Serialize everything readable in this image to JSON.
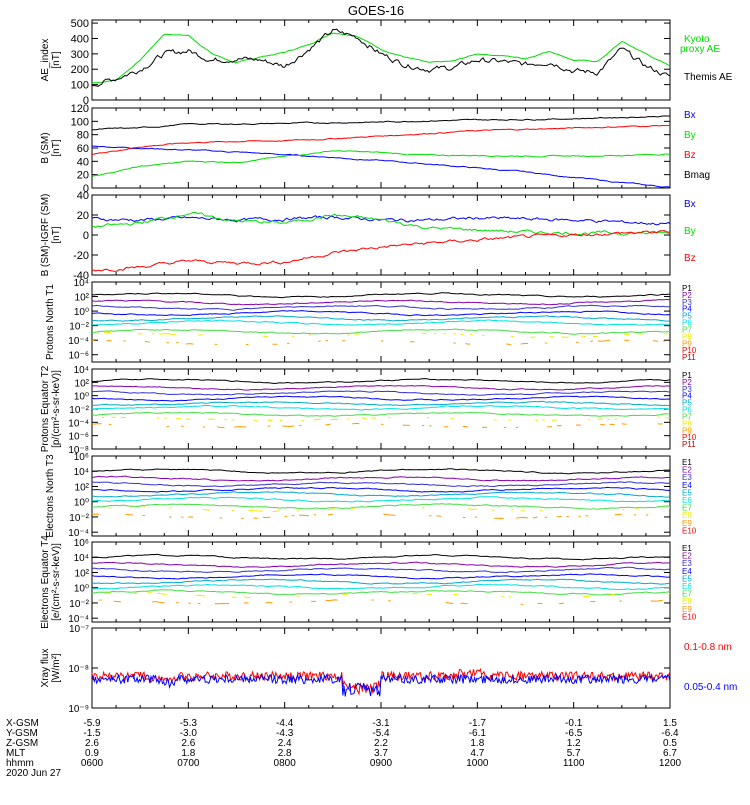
{
  "title": "GOES-16",
  "colors": {
    "black": "#000000",
    "blue": "#0000ff",
    "green": "#00dd00",
    "red": "#ff0000",
    "purple": "#8800aa",
    "indigo": "#3333cc",
    "teal": "#00aacc",
    "cyan": "#00e0e0",
    "lime": "#44dd44",
    "yellow": "#eeee00",
    "orange": "#ff9900",
    "darkred": "#bb0000"
  },
  "chart_data": [
    {
      "type": "line",
      "panel": "ae",
      "ylabel": "AE_index [nT]",
      "yticks": [
        "500",
        "400",
        "300",
        "200",
        "100",
        "0"
      ],
      "ylim": [
        0,
        520
      ],
      "legend": [
        "Kyoto proxy AE",
        "Themis AE"
      ],
      "x_hours": [
        6.0,
        6.25,
        6.5,
        6.75,
        7.0,
        7.25,
        7.5,
        7.75,
        8.0,
        8.25,
        8.5,
        8.75,
        9.0,
        9.25,
        9.5,
        9.75,
        10.0,
        10.25,
        10.5,
        10.75,
        11.0,
        11.25,
        11.5,
        11.75,
        12.0
      ],
      "series": [
        {
          "name": "Kyoto proxy AE",
          "color": "green",
          "values": [
            110,
            130,
            260,
            430,
            420,
            300,
            240,
            280,
            310,
            360,
            440,
            420,
            330,
            280,
            240,
            250,
            300,
            290,
            270,
            320,
            260,
            250,
            380,
            300,
            220
          ]
        },
        {
          "name": "Themis AE",
          "color": "black",
          "values": [
            100,
            140,
            200,
            300,
            320,
            260,
            270,
            260,
            220,
            330,
            450,
            410,
            300,
            230,
            200,
            210,
            260,
            250,
            230,
            250,
            190,
            180,
            330,
            220,
            150
          ]
        }
      ]
    },
    {
      "type": "line",
      "panel": "bsm",
      "ylabel": "B (SM) [nT]",
      "yticks": [
        "120",
        "100",
        "80",
        "60",
        "40",
        "20",
        "0"
      ],
      "ylim": [
        0,
        120
      ],
      "legend": [
        "Bx",
        "By",
        "Bz",
        "Bmag"
      ],
      "x_hours": [
        6.0,
        6.5,
        7.0,
        7.5,
        8.0,
        8.5,
        9.0,
        9.5,
        10.0,
        10.5,
        11.0,
        11.5,
        12.0
      ],
      "series": [
        {
          "name": "Bx",
          "color": "blue",
          "values": [
            63,
            60,
            57,
            54,
            50,
            46,
            41,
            36,
            30,
            24,
            16,
            8,
            1
          ]
        },
        {
          "name": "By",
          "color": "green",
          "values": [
            18,
            32,
            40,
            39,
            47,
            56,
            53,
            49,
            49,
            48,
            48,
            49,
            51
          ]
        },
        {
          "name": "Bz",
          "color": "red",
          "values": [
            50,
            62,
            68,
            70,
            71,
            74,
            78,
            82,
            86,
            88,
            90,
            92,
            94
          ]
        },
        {
          "name": "Bmag",
          "color": "black",
          "values": [
            88,
            90,
            96,
            96,
            97,
            98,
            99,
            101,
            102,
            103,
            104,
            106,
            108
          ]
        }
      ]
    },
    {
      "type": "line",
      "panel": "bigrf",
      "ylabel": "B (SM)-IGRF (SM) [nT]",
      "yticks": [
        "40",
        "20",
        "0",
        "-20",
        "-40"
      ],
      "ylim": [
        -40,
        40
      ],
      "legend": [
        "Bx",
        "By",
        "Bz"
      ],
      "x_hours": [
        6.0,
        6.5,
        7.0,
        7.5,
        8.0,
        8.5,
        9.0,
        9.5,
        10.0,
        10.5,
        11.0,
        11.5,
        12.0
      ],
      "series": [
        {
          "name": "Bx",
          "color": "blue",
          "values": [
            16,
            15,
            17,
            15,
            16,
            18,
            15,
            15,
            17,
            16,
            15,
            13,
            11
          ]
        },
        {
          "name": "By",
          "color": "green",
          "values": [
            8,
            12,
            22,
            14,
            12,
            20,
            15,
            7,
            5,
            3,
            2,
            2,
            2
          ]
        },
        {
          "name": "Bz",
          "color": "red",
          "values": [
            -35,
            -32,
            -26,
            -28,
            -27,
            -18,
            -12,
            -8,
            -5,
            -2,
            0,
            2,
            3
          ]
        }
      ]
    },
    {
      "type": "line",
      "panel": "pn",
      "ylabel": "Protons North T1",
      "yticks": [
        "10⁴",
        "10²",
        "10⁰",
        "10⁻²",
        "10⁻⁴",
        "10⁻⁶"
      ],
      "ylim_log10": [
        -7,
        4
      ],
      "legend": [
        "P1",
        "P2",
        "P3",
        "P4",
        "P5",
        "P6",
        "P7",
        "P8",
        "P9",
        "P10",
        "P11"
      ],
      "levels_log10": [
        2.2,
        1.2,
        0.5,
        -0.3,
        -1.0,
        -1.6,
        -2.8,
        -3.3,
        -4.3
      ]
    },
    {
      "type": "line",
      "panel": "pe",
      "ylabel": "Protons Equator T2 [p/(cm²-s-sr-keV)]",
      "yticks": [
        "10⁴",
        "10²",
        "10⁰",
        "10⁻²",
        "10⁻⁴",
        "10⁻⁶",
        "10⁻⁸"
      ],
      "ylim_log10": [
        -8,
        4
      ],
      "legend": [
        "P1",
        "P2",
        "P3",
        "P4",
        "P5",
        "P6",
        "P7",
        "P8",
        "P9",
        "P10",
        "P11"
      ],
      "levels_log10": [
        2.2,
        1.2,
        0.4,
        -0.4,
        -1.2,
        -1.8,
        -2.8,
        -3.5,
        -4.5
      ]
    },
    {
      "type": "line",
      "panel": "en",
      "ylabel": "Electrons North T3",
      "yticks": [
        "10⁶",
        "10⁴",
        "10²",
        "10⁰",
        "10⁻²",
        "10⁻⁴"
      ],
      "ylim_log10": [
        -4.5,
        6
      ],
      "legend": [
        "E1",
        "E2",
        "E3",
        "E4",
        "E5",
        "E6",
        "E7",
        "E8",
        "E9",
        "E10"
      ],
      "levels_log10": [
        4.0,
        3.0,
        2.3,
        1.6,
        1.0,
        0.3,
        -0.6,
        -1.0,
        -1.9
      ]
    },
    {
      "type": "line",
      "panel": "ee",
      "ylabel": "Electrons Equator T4 [e/(cm²-s-sr-keV)]",
      "yticks": [
        "10⁶",
        "10⁴",
        "10²",
        "10⁰",
        "10⁻²",
        "10⁻⁴"
      ],
      "ylim_log10": [
        -4.5,
        6
      ],
      "legend": [
        "E1",
        "E2",
        "E3",
        "E4",
        "E5",
        "E6",
        "E7",
        "E8",
        "E9",
        "E10"
      ],
      "levels_log10": [
        4.0,
        3.0,
        2.3,
        1.5,
        0.8,
        0.1,
        -0.6,
        -1.0,
        -1.9
      ]
    },
    {
      "type": "line",
      "panel": "xray",
      "ylabel": "Xray flux [W/m²]",
      "yticks": [
        "10⁻⁷",
        "10⁻⁸",
        "10⁻⁹"
      ],
      "ylim_log10": [
        -9,
        -7
      ],
      "legend": [
        "0.1-0.8 nm",
        "0.05-0.4 nm"
      ],
      "series": [
        {
          "name": "0.1-0.8 nm",
          "color": "red",
          "base_log10": -8.2
        },
        {
          "name": "0.05-0.4 nm",
          "color": "blue",
          "base_log10": -8.28
        }
      ]
    }
  ],
  "xaxis": {
    "labels": [
      "X-GSM",
      "Y-GSM",
      "Z-GSM",
      "MLT",
      "hhmm"
    ],
    "rows": [
      [
        "-5.9",
        "-5.3",
        "-4.4",
        "-3.1",
        "-1.7",
        "-0.1",
        "1.5"
      ],
      [
        "-1.5",
        "-3.0",
        "-4.3",
        "-5.4",
        "-6.1",
        "-6.5",
        "-6.4"
      ],
      [
        "2.6",
        "2.6",
        "2.4",
        "2.2",
        "1.8",
        "1.2",
        "0.5"
      ],
      [
        "0.9",
        "1.8",
        "2.8",
        "3.7",
        "4.7",
        "5.7",
        "6.7"
      ],
      [
        "0600",
        "0700",
        "0800",
        "0900",
        "1000",
        "1100",
        "1200"
      ]
    ],
    "date": "2020 Jun 27"
  }
}
